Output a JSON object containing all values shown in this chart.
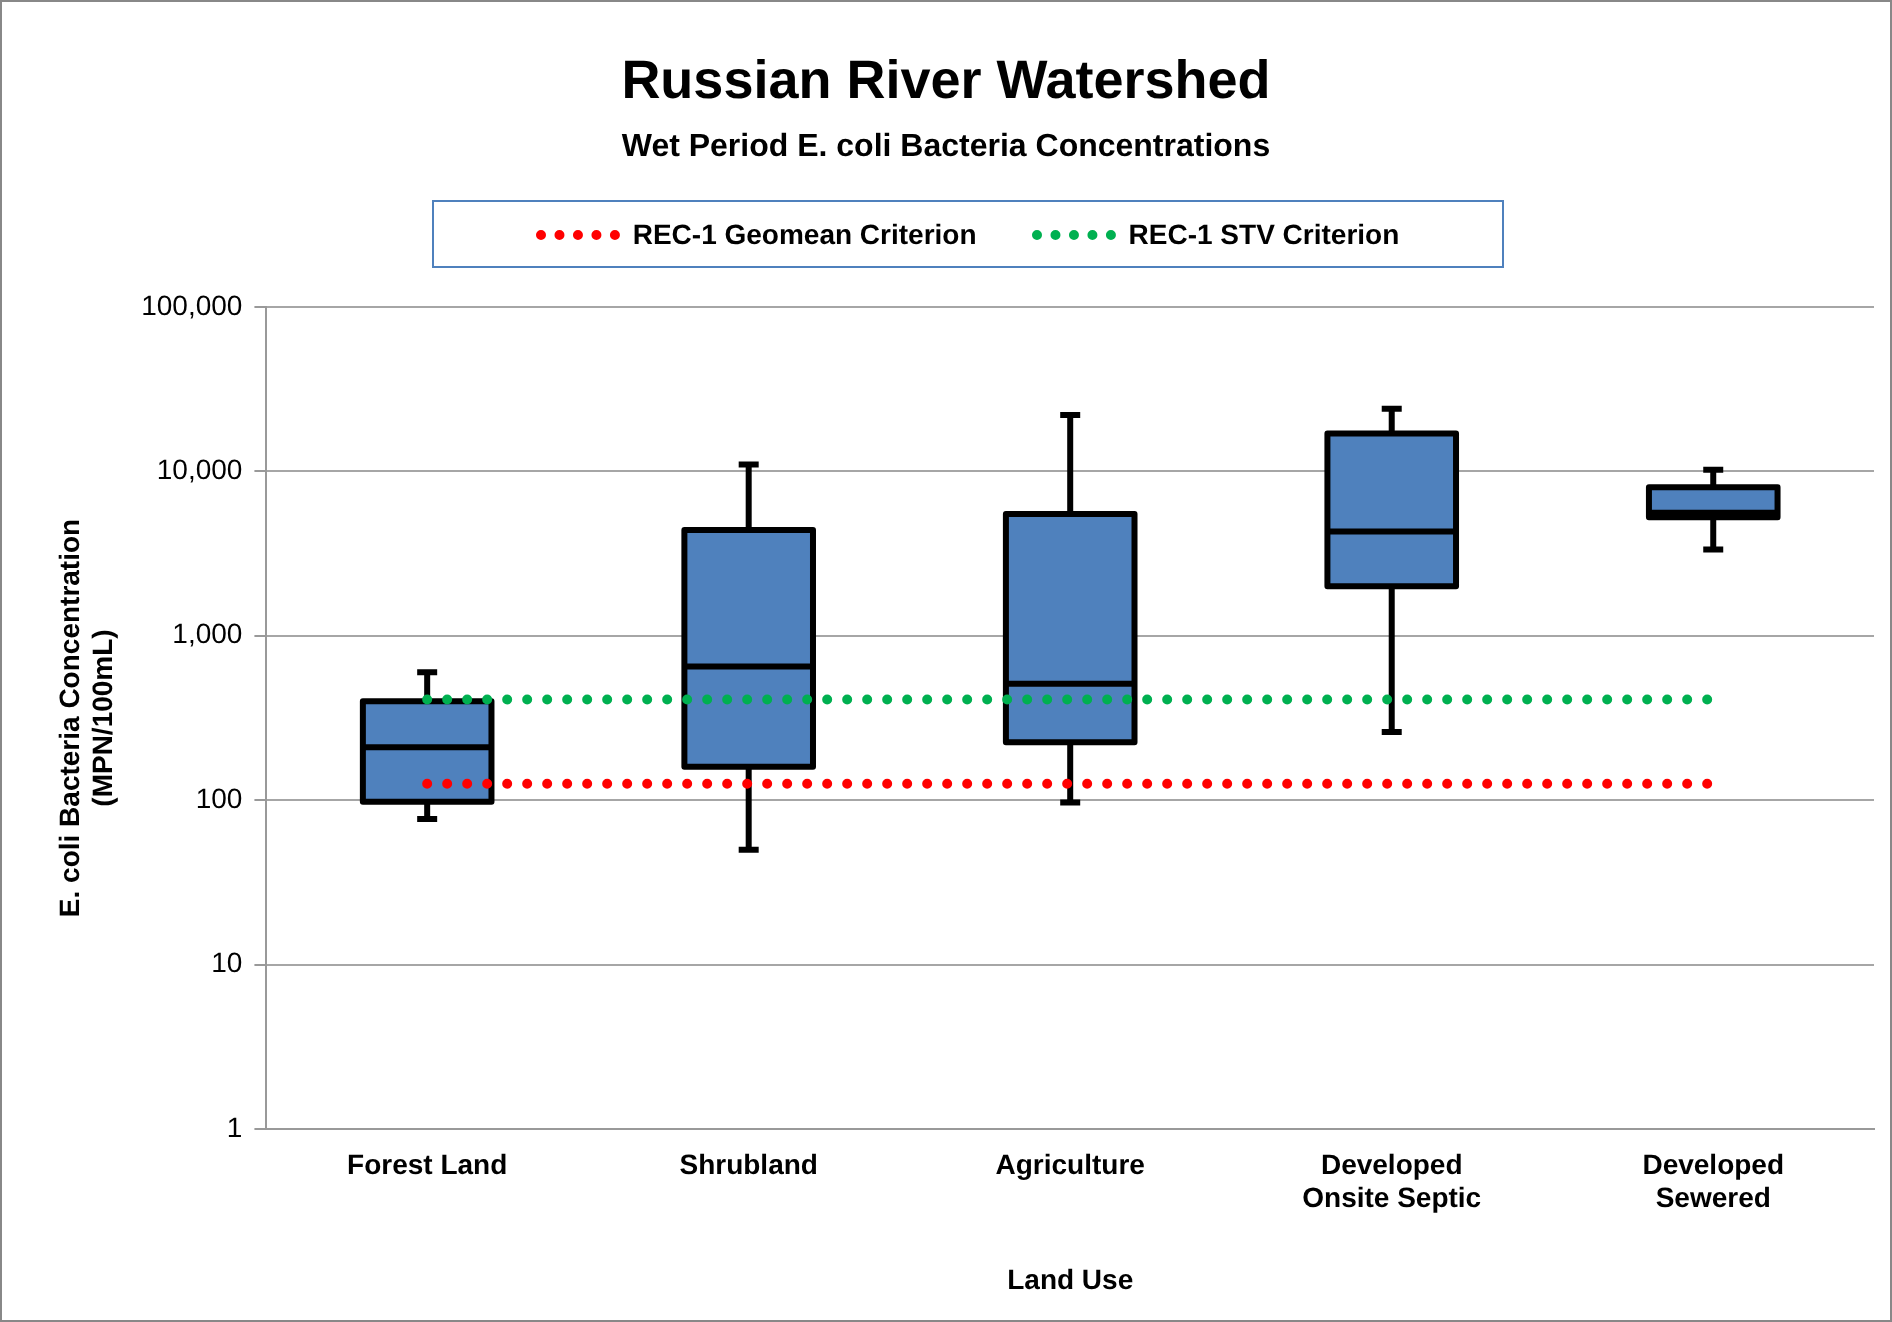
{
  "chart_data": {
    "type": "box",
    "title": "Russian River Watershed",
    "subtitle": "Wet Period E. coli Bacteria Concentrations",
    "xlabel": "Land Use",
    "ylabel": "E. coli Bacteria Concentration (MPN/100mL)",
    "categories": [
      "Forest Land",
      "Shrubland",
      "Agriculture",
      "Developed Onsite Septic",
      "Developed Sewered"
    ],
    "series": [
      {
        "color": "#4f81bd",
        "boxes": [
          {
            "low": 77,
            "q1": 98,
            "median": 210,
            "q3": 400,
            "high": 600
          },
          {
            "low": 50,
            "q1": 160,
            "median": 650,
            "q3": 4400,
            "high": 11000
          },
          {
            "low": 97,
            "q1": 225,
            "median": 510,
            "q3": 5500,
            "high": 22000
          },
          {
            "low": 260,
            "q1": 2000,
            "median": 4300,
            "q3": 17000,
            "high": 24000
          },
          {
            "low": 3350,
            "q1": 5250,
            "median": 5600,
            "q3": 8000,
            "high": 10200
          }
        ]
      },
      {
        "type": "line",
        "name": "REC-1 Geomean Criterion",
        "color": "#ff0000",
        "line_style": "dotted",
        "marker": "none",
        "values": [
          126,
          126,
          126,
          126,
          126
        ]
      },
      {
        "type": "line",
        "name": "REC-1 STV Criterion",
        "color": "#00b050",
        "line_style": "dotted",
        "marker": "none",
        "values": [
          410,
          410,
          410,
          410,
          410
        ]
      }
    ],
    "log": true,
    "ylim": [
      1,
      100000
    ],
    "yticks": [
      1,
      10,
      100,
      {
        "value": 1000,
        "label": "1,000"
      },
      {
        "value": 10000,
        "label": "10,000"
      },
      {
        "value": 100000,
        "label": "100,000"
      }
    ],
    "grid": "y",
    "legend": "top"
  }
}
